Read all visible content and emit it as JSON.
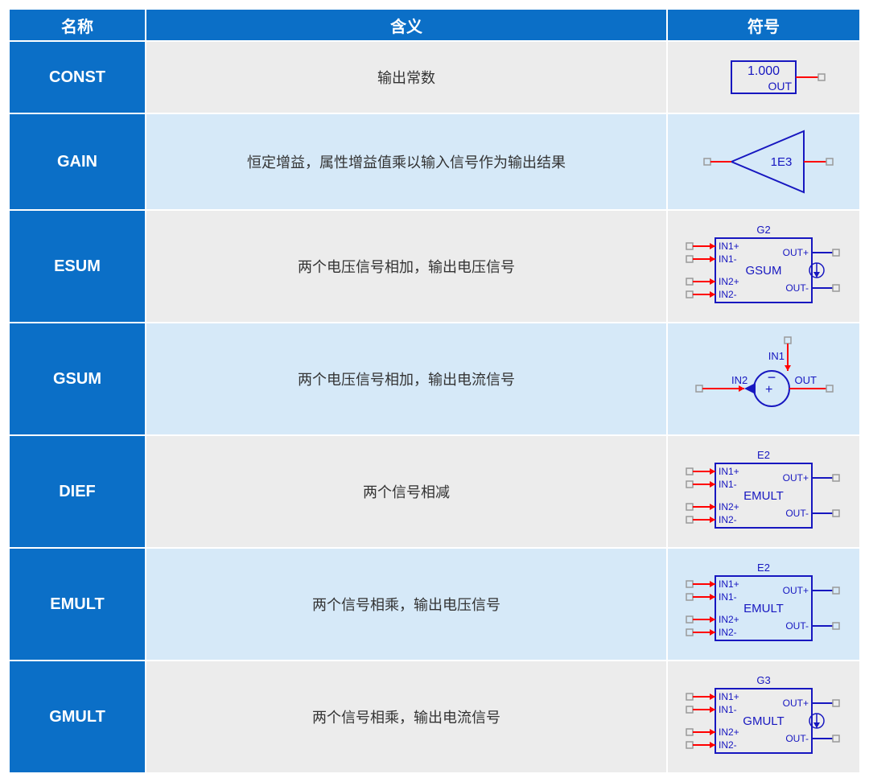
{
  "headers": {
    "name": "名称",
    "meaning": "含义",
    "symbol": "符号"
  },
  "colors": {
    "header_bg": "#0b6fc7",
    "header_fg": "#ffffff",
    "row_odd": "#ececec",
    "row_even": "#d6e9f8",
    "sym_blue": "#1717c0",
    "sym_red": "#ff0000",
    "sym_gray": "#9a9a9a",
    "sym_text": "#1717c0"
  },
  "rows": [
    {
      "name": "CONST",
      "meaning": "输出常数",
      "symbol_type": "const",
      "height": 90,
      "sym": {
        "box_text_top": "1.000",
        "box_text_bot": "OUT"
      }
    },
    {
      "name": "GAIN",
      "meaning": "恒定增益，属性增益值乘以输入信号作为输出结果",
      "symbol_type": "gain",
      "height": 120,
      "sym": {
        "text": "1E3"
      }
    },
    {
      "name": "ESUM",
      "meaning": "两个电压信号相加，输出电压信号",
      "symbol_type": "block4",
      "height": 140,
      "sym": {
        "title": "G2",
        "center": "GSUM",
        "source_mark": true,
        "in": [
          "IN1+",
          "IN1-",
          "IN2+",
          "IN2-"
        ],
        "out": [
          "OUT+",
          "OUT-"
        ]
      }
    },
    {
      "name": "GSUM",
      "meaning": "两个电压信号相加，输出电流信号",
      "symbol_type": "gsum_circle",
      "height": 140,
      "sym": {
        "in1": "IN1",
        "in2": "IN2",
        "out": "OUT"
      }
    },
    {
      "name": "DIEF",
      "meaning": "两个信号相减",
      "symbol_type": "block4",
      "height": 140,
      "sym": {
        "title": "E2",
        "center": "EMULT",
        "source_mark": false,
        "in": [
          "IN1+",
          "IN1-",
          "IN2+",
          "IN2-"
        ],
        "out": [
          "OUT+",
          "OUT-"
        ]
      }
    },
    {
      "name": "EMULT",
      "meaning": "两个信号相乘，输出电压信号",
      "symbol_type": "block4",
      "height": 140,
      "sym": {
        "title": "E2",
        "center": "EMULT",
        "source_mark": false,
        "in": [
          "IN1+",
          "IN1-",
          "IN2+",
          "IN2-"
        ],
        "out": [
          "OUT+",
          "OUT-"
        ]
      }
    },
    {
      "name": "GMULT",
      "meaning": "两个信号相乘，输出电流信号",
      "symbol_type": "block4",
      "height": 140,
      "sym": {
        "title": "G3",
        "center": "GMULT",
        "source_mark": true,
        "in": [
          "IN1+",
          "IN1-",
          "IN2+",
          "IN2-"
        ],
        "out": [
          "OUT+",
          "OUT-"
        ]
      }
    }
  ]
}
